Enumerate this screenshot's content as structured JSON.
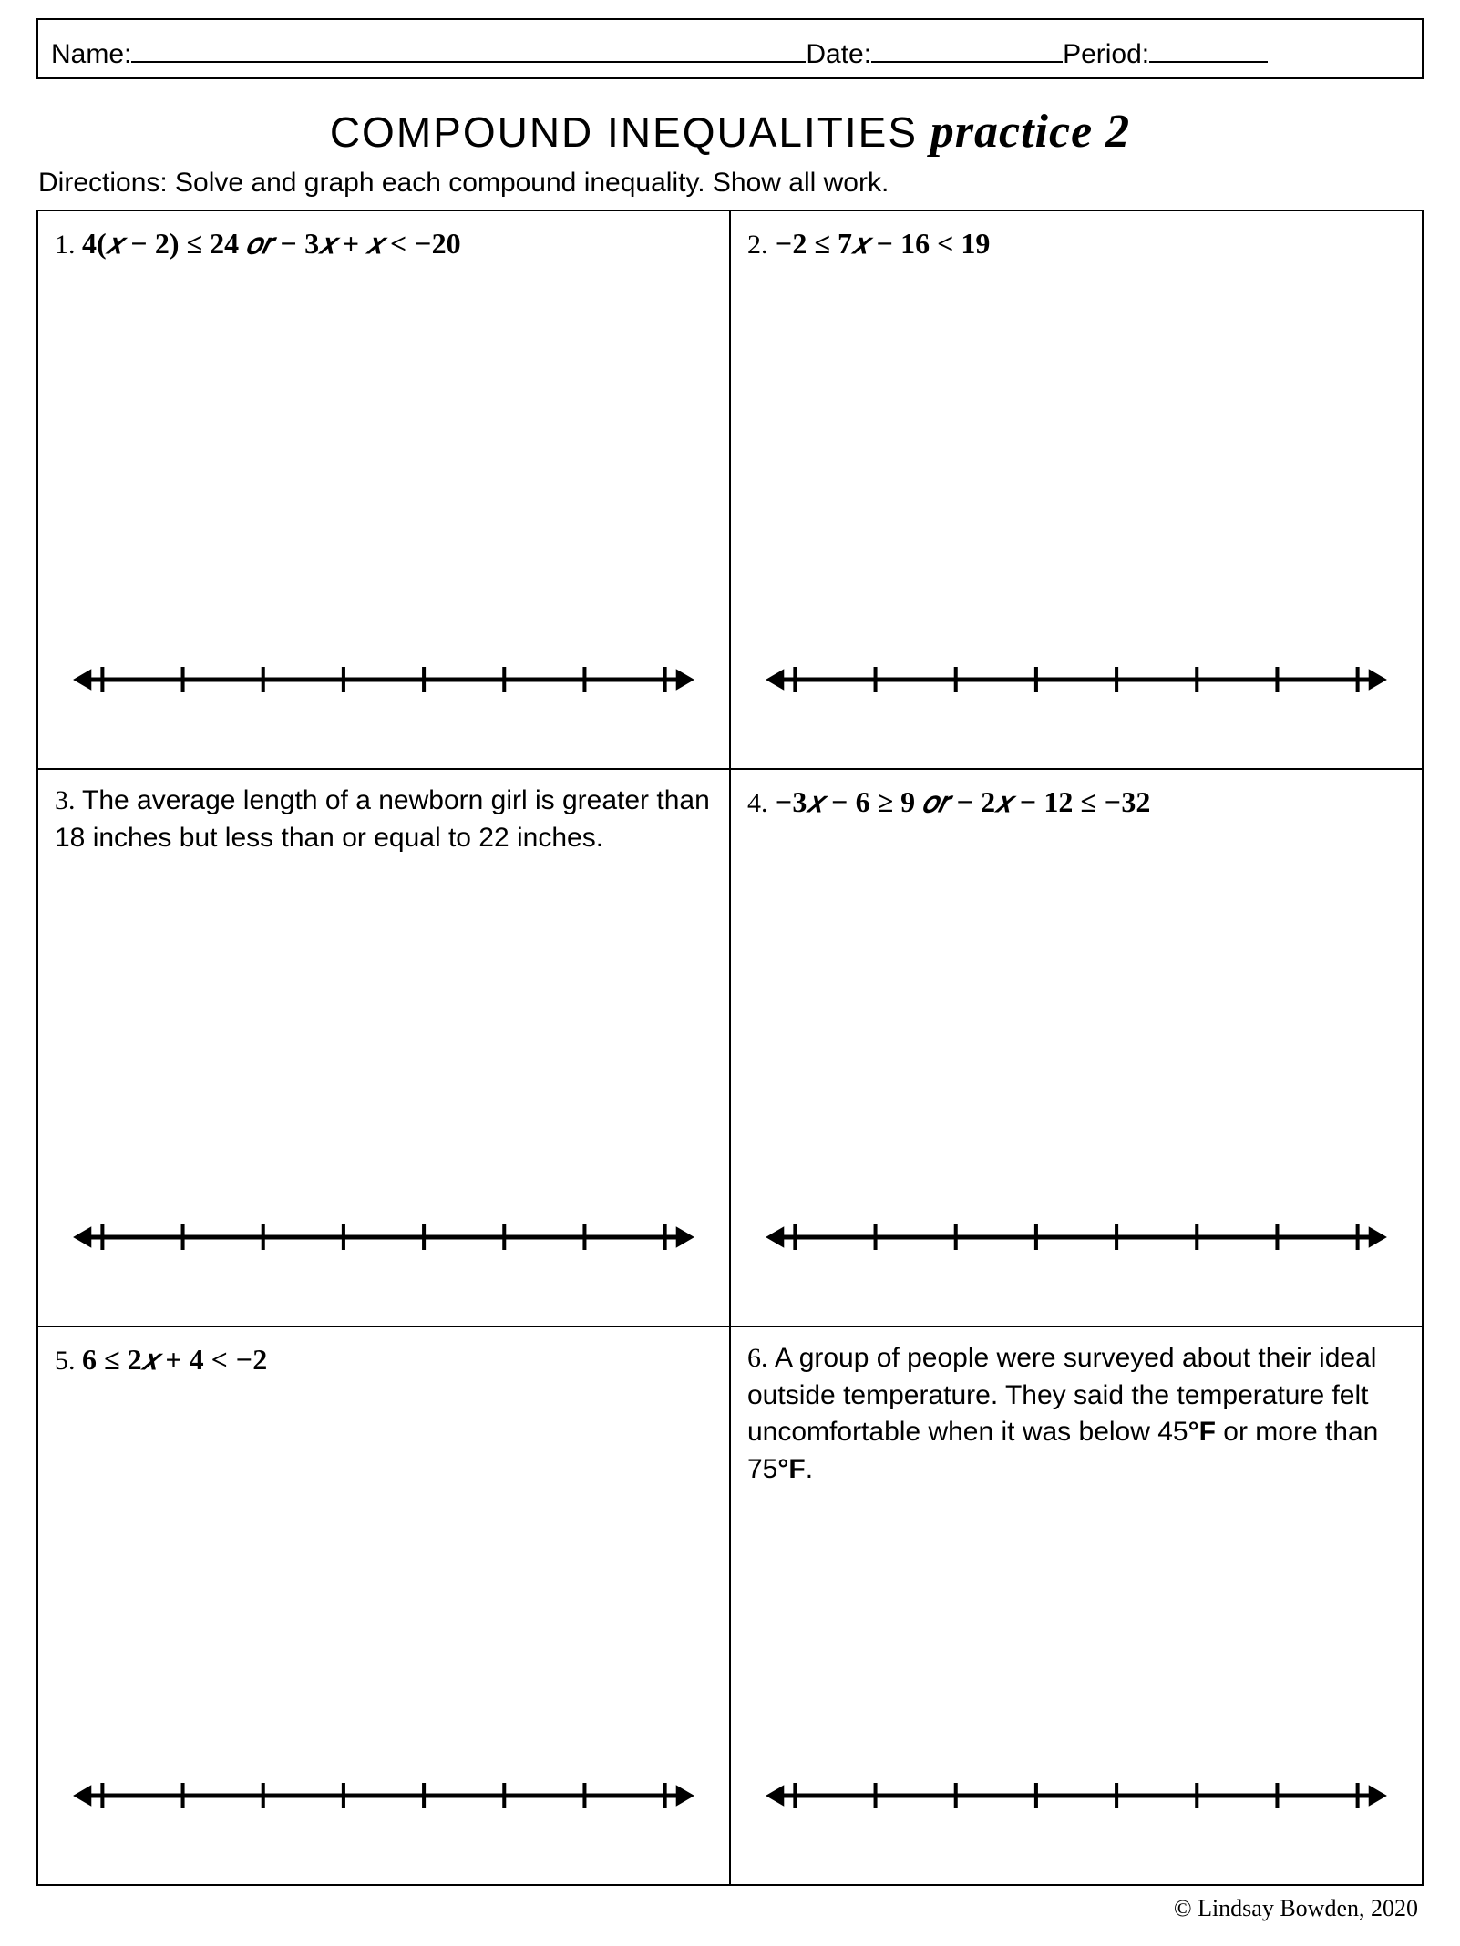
{
  "header": {
    "name_label": "Name:",
    "date_label": "Date:",
    "period_label": "Period:",
    "name_blank_width": 740,
    "date_blank_width": 210,
    "period_blank_width": 130
  },
  "title": {
    "main": "COMPOUND INEQUALITIES",
    "sub": "practice 2"
  },
  "directions": "Directions: Solve and graph each compound inequality. Show all work.",
  "problems": [
    {
      "num": "1.",
      "type": "math",
      "expr": "4(𝑥 − 2) ≤ 24 𝑜𝑟 − 3𝑥 + 𝑥 < −20"
    },
    {
      "num": "2.",
      "type": "math",
      "expr": "−2 ≤ 7𝑥 − 16 < 19"
    },
    {
      "num": "3.",
      "type": "text",
      "expr": "The average length of a newborn girl is greater than 18 inches but less than or equal to 22 inches."
    },
    {
      "num": "4.",
      "type": "math",
      "expr": "−3𝑥 − 6 ≥ 9 𝑜𝑟 − 2𝑥 − 12 ≤ −32"
    },
    {
      "num": "5.",
      "type": "math",
      "expr": "6 ≤ 2𝑥 + 4 < −2"
    },
    {
      "num": "6.",
      "type": "text",
      "expr": "A group of people were surveyed about their ideal outside temperature. They said the temperature felt uncomfortable when it was below 45°𝐅 or more than 75°𝐅."
    }
  ],
  "numberline": {
    "ticks": 8,
    "stroke": "#000000",
    "line_width": 5,
    "tick_height": 28,
    "tick_width": 4,
    "arrow_size": 18
  },
  "copyright": "© Lindsay Bowden, 2020"
}
